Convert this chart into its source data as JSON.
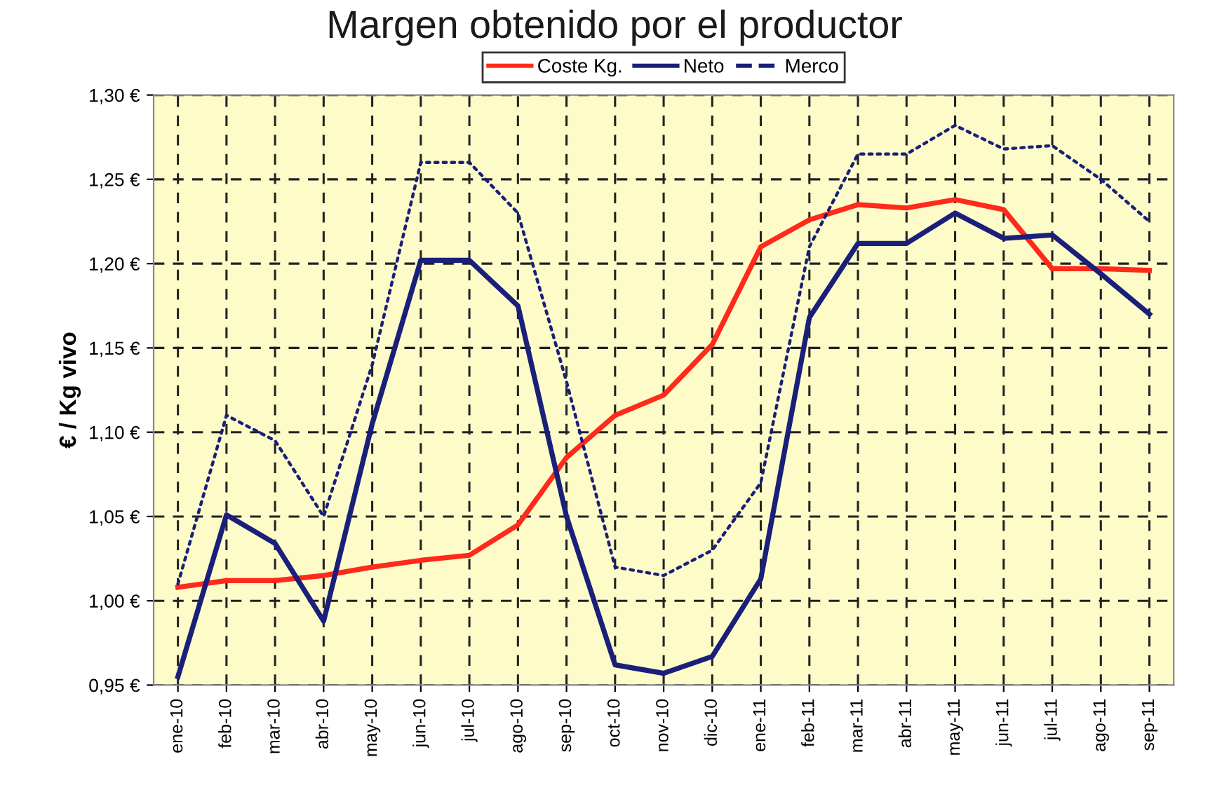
{
  "chart_data": {
    "type": "line",
    "title": "Margen obtenido por el productor",
    "ylabel": "€ / Kg vivo",
    "categories": [
      "ene-10",
      "feb-10",
      "mar-10",
      "abr-10",
      "may-10",
      "jun-10",
      "jul-10",
      "ago-10",
      "sep-10",
      "oct-10",
      "nov-10",
      "dic-10",
      "ene-11",
      "feb-11",
      "mar-11",
      "abr-11",
      "may-11",
      "jun-11",
      "jul-11",
      "ago-11",
      "sep-11"
    ],
    "series": [
      {
        "name": "Coste Kg.",
        "color": "#ff2a1a",
        "line_style": "solid",
        "values": [
          1.008,
          1.012,
          1.012,
          1.015,
          1.02,
          1.024,
          1.027,
          1.045,
          1.085,
          1.11,
          1.122,
          1.152,
          1.21,
          1.226,
          1.235,
          1.233,
          1.238,
          1.232,
          1.197,
          1.197,
          1.196
        ]
      },
      {
        "name": "Neto",
        "color": "#1a1f7a",
        "line_style": "solid",
        "values": [
          0.955,
          1.051,
          1.034,
          0.988,
          1.105,
          1.202,
          1.202,
          1.175,
          1.05,
          0.962,
          0.957,
          0.967,
          1.013,
          1.168,
          1.212,
          1.212,
          1.23,
          1.215,
          1.217,
          1.194,
          1.17
        ]
      },
      {
        "name": "Merco",
        "color": "#1a1f7a",
        "line_style": "dotted",
        "values": [
          1.01,
          1.11,
          1.095,
          1.05,
          1.14,
          1.26,
          1.26,
          1.23,
          1.13,
          1.02,
          1.015,
          1.03,
          1.07,
          1.21,
          1.265,
          1.265,
          1.282,
          1.268,
          1.27,
          1.25,
          1.225
        ]
      }
    ],
    "ylim": [
      0.95,
      1.3
    ],
    "yticks": [
      {
        "value": 0.95,
        "label": "0,95 €"
      },
      {
        "value": 1.0,
        "label": "1,00 €"
      },
      {
        "value": 1.05,
        "label": "1,05 €"
      },
      {
        "value": 1.1,
        "label": "1,10 €"
      },
      {
        "value": 1.15,
        "label": "1,15 €"
      },
      {
        "value": 1.2,
        "label": "1,20 €"
      },
      {
        "value": 1.25,
        "label": "1,25 €"
      },
      {
        "value": 1.3,
        "label": "1,30 €"
      }
    ],
    "grid": true,
    "legend": "top",
    "marker": "none"
  }
}
